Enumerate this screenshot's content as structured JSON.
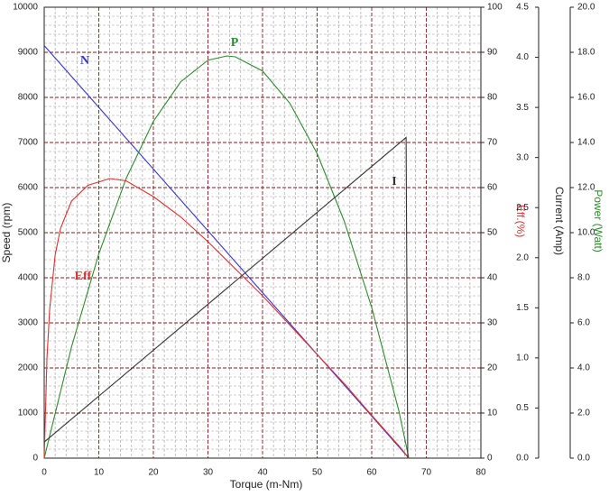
{
  "chart_data": {
    "type": "line",
    "x_label": "Torque (m-Nm)",
    "y_label": "Speed (rpm)",
    "y2_label": "Eff.(%)",
    "y3_label": "Current (Amp)",
    "y4_label": "Power (Watt)",
    "xlim": [
      0,
      80
    ],
    "xticks": [
      0,
      10,
      20,
      30,
      40,
      50,
      60,
      70,
      80
    ],
    "ylim": [
      0,
      10000
    ],
    "yticks": [
      0,
      1000,
      2000,
      3000,
      4000,
      5000,
      6000,
      7000,
      8000,
      9000,
      10000
    ],
    "y2lim": [
      0,
      100
    ],
    "y2ticks": [
      0,
      10,
      20,
      30,
      40,
      50,
      60,
      70,
      80,
      90,
      100
    ],
    "y3lim": [
      0,
      4.5
    ],
    "y3ticks": [
      {
        "value": 0,
        "label": "0.0"
      },
      0.5,
      {
        "value": 1,
        "label": "1.0"
      },
      1.5,
      {
        "value": 2,
        "label": "2.0"
      },
      2.5,
      {
        "value": 3,
        "label": "3.0"
      },
      3.5,
      {
        "value": 4,
        "label": "4.0"
      },
      4.5
    ],
    "y4lim": [
      0,
      20
    ],
    "y4ticks": [
      {
        "value": 0,
        "label": "0.0"
      },
      {
        "value": 2,
        "label": "2.0"
      },
      {
        "value": 4,
        "label": "4.0"
      },
      {
        "value": 6,
        "label": "6.0"
      },
      {
        "value": 8,
        "label": "8.0"
      },
      {
        "value": 10,
        "label": "10.0"
      },
      {
        "value": 12,
        "label": "12.0"
      },
      {
        "value": 14,
        "label": "14.0"
      },
      {
        "value": 16,
        "label": "16.0"
      },
      {
        "value": 18,
        "label": "18.0"
      },
      {
        "value": 20,
        "label": "20.0"
      }
    ],
    "grid": true,
    "series": [
      {
        "name": "N",
        "color": "#3333cc",
        "axis": "y",
        "x": [
          0,
          66.8
        ],
        "values": [
          9150,
          0
        ]
      },
      {
        "name": "P",
        "color": "#2e8b2e",
        "axis": "y4",
        "x": [
          0,
          5,
          10,
          15,
          20,
          25,
          30,
          33.5,
          35,
          40,
          45,
          50,
          55,
          60,
          65,
          66.8
        ],
        "values": [
          0,
          4.93,
          9.06,
          12.4,
          14.94,
          16.69,
          17.65,
          17.84,
          17.8,
          17.17,
          15.74,
          13.51,
          10.49,
          6.68,
          2.07,
          0
        ]
      },
      {
        "name": "Eff",
        "color": "#e03030",
        "axis": "y2",
        "x": [
          0,
          0.5,
          1,
          2,
          3,
          5,
          8,
          12,
          15,
          20,
          25,
          30,
          35,
          40,
          45,
          50,
          55,
          60,
          65,
          66.8
        ],
        "values": [
          0,
          22,
          33,
          45,
          51,
          57,
          60.5,
          62,
          61.5,
          58,
          53.5,
          48,
          42,
          36,
          29.5,
          23,
          16.5,
          9.5,
          2.7,
          0
        ]
      },
      {
        "name": "I",
        "color": "#333333",
        "axis": "y3",
        "x": [
          0,
          66.3,
          66.6
        ],
        "values": [
          0.16,
          3.2,
          0
        ]
      }
    ]
  }
}
